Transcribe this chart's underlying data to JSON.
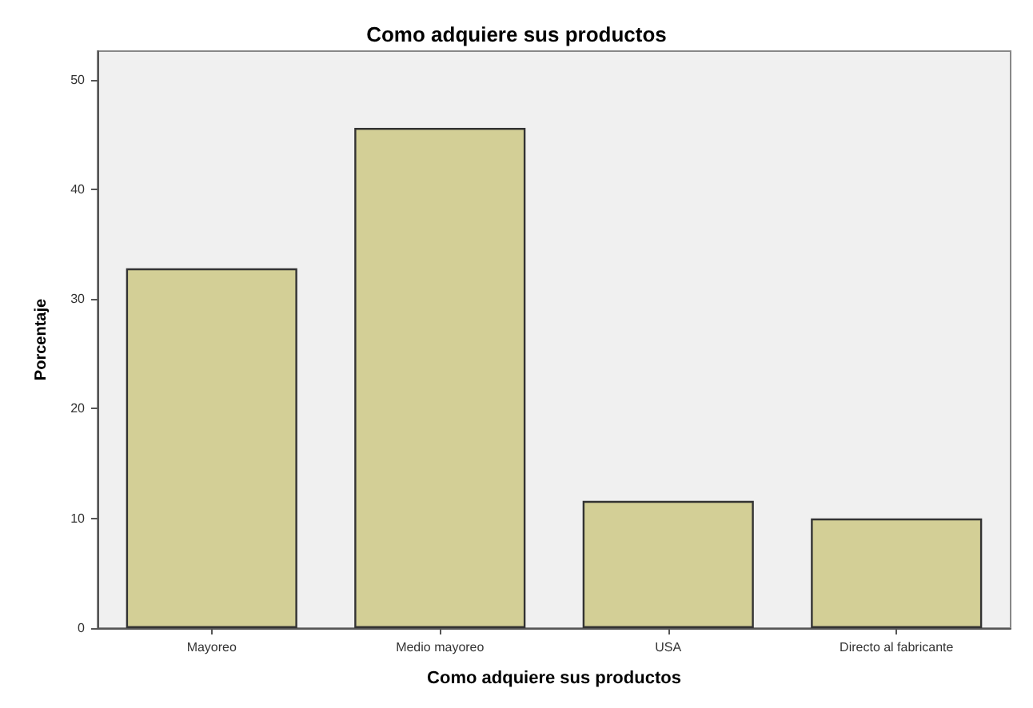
{
  "chart_data": {
    "type": "bar",
    "title": "Como adquiere sus productos",
    "xlabel": "Como adquiere sus productos",
    "ylabel": "Porcentaje",
    "categories": [
      "Mayoreo",
      "Medio mayoreo",
      "USA",
      "Directo al fabricante"
    ],
    "values": [
      32.8,
      45.6,
      11.6,
      10.0
    ],
    "color": "#d3cf96",
    "ylim": [
      0,
      52.6
    ],
    "yticks": [
      0,
      10,
      20,
      30,
      40,
      50
    ],
    "grid": false
  }
}
